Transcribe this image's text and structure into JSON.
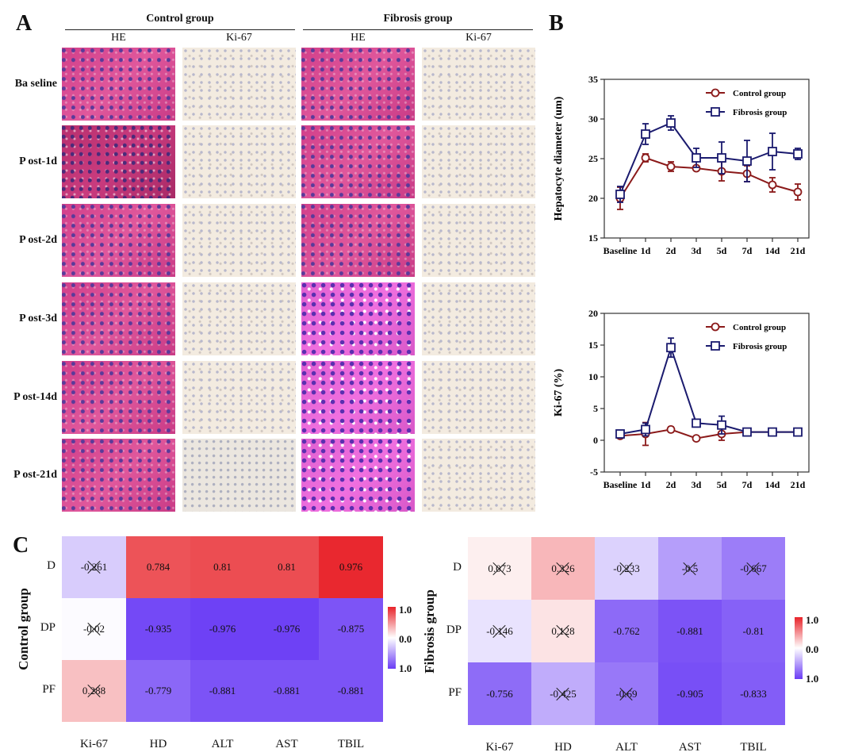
{
  "panels": {
    "a": "A",
    "b": "B",
    "c": "C"
  },
  "panel_a": {
    "groups": [
      {
        "title": "Control group",
        "columns": [
          "HE",
          "Ki-67"
        ]
      },
      {
        "title": "Fibrosis group",
        "columns": [
          "HE",
          "Ki-67"
        ]
      }
    ],
    "rows": [
      "Ba seline",
      "P ost-1d",
      "P ost-2d",
      "P ost-3d",
      "P ost-14d",
      "P ost-21d"
    ],
    "image_descriptions": {
      "he": "HE-stained liver histology micrograph",
      "ki67": "Ki-67 immunohistochemistry liver micrograph"
    }
  },
  "chart_data": [
    {
      "type": "line",
      "title": "",
      "xlabel": "",
      "ylabel": "Hepatocyte diameter (um)",
      "categories": [
        "Baseline",
        "1d",
        "2d",
        "3d",
        "5d",
        "7d",
        "14d",
        "21d"
      ],
      "ylim": [
        15,
        35
      ],
      "yticks": [
        15,
        20,
        25,
        30,
        35
      ],
      "legend": "top-right",
      "grid": false,
      "series": [
        {
          "name": "Control group",
          "color": "#8b1a1a",
          "marker": "circle",
          "values": [
            20.0,
            25.1,
            24.0,
            23.8,
            23.4,
            23.1,
            21.7,
            20.8
          ],
          "errors": [
            1.4,
            0.5,
            0.6,
            0.2,
            1.2,
            1.0,
            0.9,
            1.0
          ]
        },
        {
          "name": "Fibrosis group",
          "color": "#1a1a6e",
          "marker": "square",
          "values": [
            20.5,
            28.1,
            29.5,
            25.1,
            25.1,
            24.7,
            25.9,
            25.6
          ],
          "errors": [
            1.0,
            1.3,
            0.9,
            1.2,
            2.0,
            2.6,
            2.3,
            0.7
          ]
        }
      ]
    },
    {
      "type": "line",
      "title": "",
      "xlabel": "",
      "ylabel": "Ki-67 (%)",
      "categories": [
        "Baseline",
        "1d",
        "2d",
        "3d",
        "5d",
        "7d",
        "14d",
        "21d"
      ],
      "ylim": [
        -5,
        20
      ],
      "yticks": [
        -5,
        0,
        5,
        10,
        15,
        20
      ],
      "legend": "top-right",
      "grid": false,
      "series": [
        {
          "name": "Control group",
          "color": "#8b1a1a",
          "marker": "circle",
          "values": [
            0.7,
            1.0,
            1.7,
            0.3,
            1.0,
            1.3,
            1.3,
            1.3
          ],
          "errors": [
            0.3,
            1.8,
            0.4,
            0.3,
            1.0,
            0.2,
            0.2,
            0.2
          ]
        },
        {
          "name": "Fibrosis group",
          "color": "#1a1a6e",
          "marker": "square",
          "values": [
            1.0,
            1.7,
            14.6,
            2.7,
            2.4,
            1.3,
            1.3,
            1.3
          ],
          "errors": [
            0.2,
            1.0,
            1.5,
            0.3,
            1.4,
            0.2,
            0.2,
            0.2
          ]
        }
      ]
    },
    {
      "type": "heatmap",
      "ylabel": "Control group",
      "rows": [
        "D",
        "DP",
        "PF"
      ],
      "columns": [
        "Ki-67",
        "HD",
        "ALT",
        "AST",
        "TBIL"
      ],
      "values": [
        [
          -0.261,
          0.784,
          0.81,
          0.81,
          0.976
        ],
        [
          -0.02,
          -0.935,
          -0.976,
          -0.976,
          -0.875
        ],
        [
          0.288,
          -0.779,
          -0.881,
          -0.881,
          -0.881
        ]
      ],
      "crossed": [
        [
          true,
          false,
          false,
          false,
          false
        ],
        [
          true,
          false,
          false,
          false,
          false
        ],
        [
          true,
          false,
          false,
          false,
          false
        ]
      ],
      "colorbar": {
        "labels": [
          "1.0",
          "0.0",
          "1.0"
        ],
        "range": [
          -1,
          1
        ],
        "high": "#e8232a",
        "mid": "#ffffff",
        "low": "#6a3cf5"
      }
    },
    {
      "type": "heatmap",
      "ylabel": "Fibrosis group",
      "rows": [
        "D",
        "DP",
        "PF"
      ],
      "columns": [
        "Ki-67",
        "HD",
        "ALT",
        "AST",
        "TBIL"
      ],
      "values": [
        [
          0.073,
          0.326,
          -0.233,
          -0.5,
          -0.667
        ],
        [
          -0.146,
          0.128,
          -0.762,
          -0.881,
          -0.81
        ],
        [
          -0.756,
          -0.425,
          -0.69,
          -0.905,
          -0.833
        ]
      ],
      "crossed": [
        [
          true,
          true,
          true,
          true,
          true
        ],
        [
          true,
          true,
          false,
          false,
          false
        ],
        [
          false,
          true,
          true,
          false,
          false
        ]
      ],
      "colorbar": {
        "labels": [
          "1.0",
          "0.0",
          "1.0"
        ],
        "range": [
          -1,
          1
        ],
        "high": "#e8232a",
        "mid": "#ffffff",
        "low": "#6a3cf5"
      }
    }
  ]
}
